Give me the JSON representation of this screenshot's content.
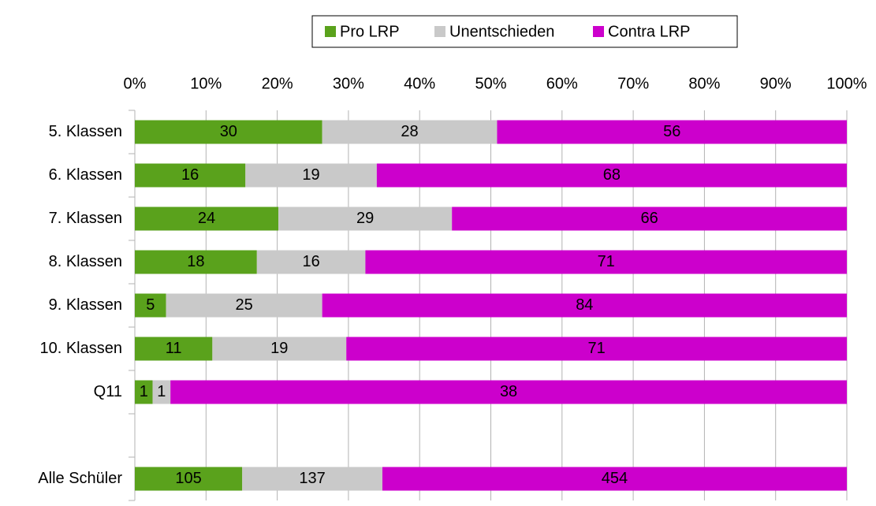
{
  "chart_data": {
    "type": "bar",
    "orientation": "horizontal",
    "stacking": "percent",
    "categories": [
      "5. Klassen",
      "6. Klassen",
      "7. Klassen",
      "8. Klassen",
      "9. Klassen",
      "10. Klassen",
      "Q11",
      null,
      "Alle Schüler"
    ],
    "series": [
      {
        "name": "Pro LRP",
        "color": "#5aa21c",
        "values": [
          30,
          16,
          24,
          18,
          5,
          11,
          1,
          null,
          105
        ]
      },
      {
        "name": "Unentschieden",
        "color": "#c9c9c9",
        "values": [
          28,
          19,
          29,
          16,
          25,
          19,
          1,
          null,
          137
        ]
      },
      {
        "name": "Contra LRP",
        "color": "#cc00cc",
        "values": [
          56,
          68,
          66,
          71,
          84,
          71,
          38,
          null,
          454
        ]
      }
    ],
    "xlim": [
      0,
      100
    ],
    "xticks": [
      {
        "value": 0,
        "label": "0%"
      },
      {
        "value": 10,
        "label": "10%"
      },
      {
        "value": 20,
        "label": "20%"
      },
      {
        "value": 30,
        "label": "30%"
      },
      {
        "value": 40,
        "label": "40%"
      },
      {
        "value": 50,
        "label": "50%"
      },
      {
        "value": 60,
        "label": "60%"
      },
      {
        "value": 70,
        "label": "70%"
      },
      {
        "value": 80,
        "label": "80%"
      },
      {
        "value": 90,
        "label": "90%"
      },
      {
        "value": 100,
        "label": "100%"
      }
    ],
    "grid": true,
    "legend": "top"
  }
}
